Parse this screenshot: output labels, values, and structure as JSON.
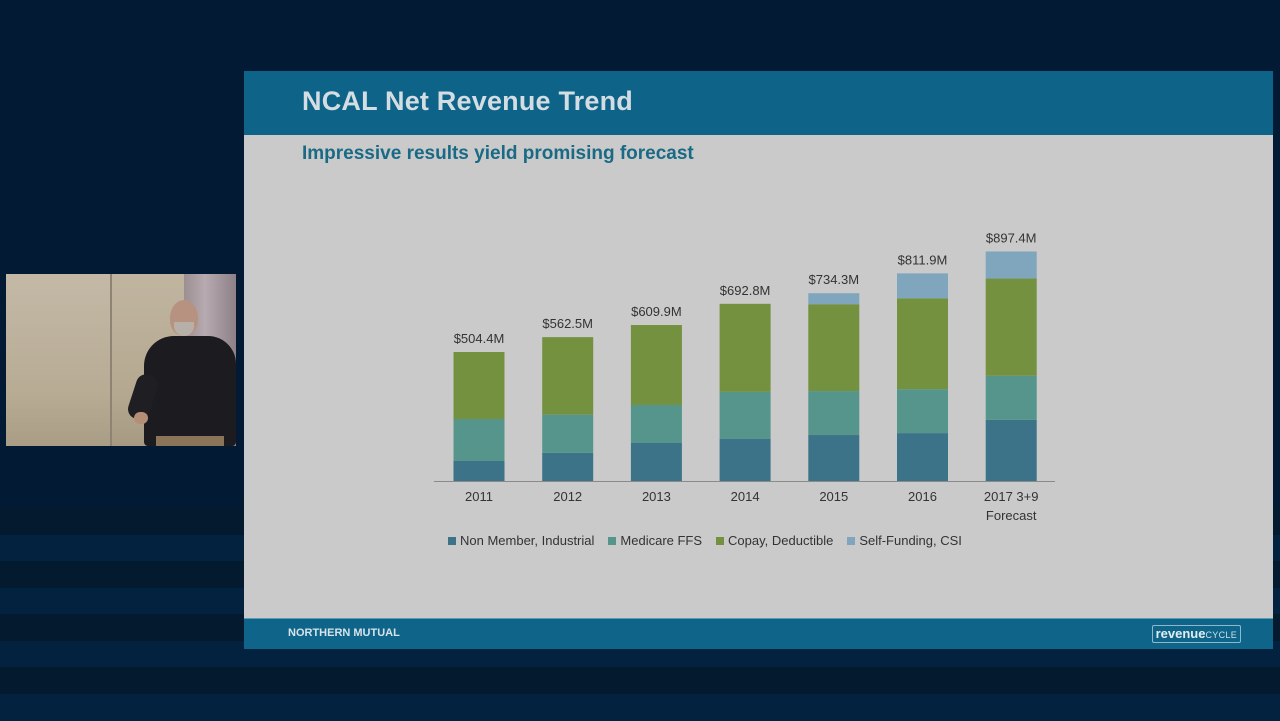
{
  "background": {
    "stripe_colors": [
      "#041a2e",
      "#03223f",
      "#041a2e",
      "#03223f",
      "#041a2e",
      "#03223f",
      "#041a2e",
      "#03223f"
    ]
  },
  "webcam": {
    "description": "presenter video feed"
  },
  "slide": {
    "title": "NCAL Net Revenue Trend",
    "subtitle": "Impressive results yield promising forecast",
    "footer_org": "NORTHERN MUTUAL",
    "footer_logo_bold": "revenue",
    "footer_logo_light": "CYCLE",
    "colors": {
      "header": "#0e6389",
      "background": "#cacaca",
      "subtitle": "#1a6a86"
    }
  },
  "chart_data": {
    "type": "bar",
    "stacked": true,
    "title": "",
    "xlabel": "",
    "ylabel": "",
    "ylim": [
      0,
      950
    ],
    "grid": false,
    "legend_position": "bottom",
    "categories": [
      "2011",
      "2012",
      "2013",
      "2014",
      "2015",
      "2016",
      "2017 3+9 Forecast"
    ],
    "category_lines": [
      [
        "2011"
      ],
      [
        "2012"
      ],
      [
        "2013"
      ],
      [
        "2014"
      ],
      [
        "2015"
      ],
      [
        "2016"
      ],
      [
        "2017 3+9",
        "Forecast"
      ]
    ],
    "totals": [
      504.4,
      562.5,
      609.9,
      692.8,
      734.3,
      811.9,
      897.4
    ],
    "total_labels": [
      "$504.4M",
      "$562.5M",
      "$609.9M",
      "$692.8M",
      "$734.3M",
      "$811.9M",
      "$897.4M"
    ],
    "units": "$M",
    "series": [
      {
        "name": "Non Member, Industrial",
        "color": "#3c7389",
        "values": [
          78.2,
          110.1,
          148.6,
          164.4,
          179.7,
          187.3,
          239.0
        ]
      },
      {
        "name": "Medicare FFS",
        "color": "#55958b",
        "values": [
          164.2,
          149.4,
          148.6,
          184.0,
          171.9,
          171.7,
          172.4
        ]
      },
      {
        "name": "Copay, Deductible",
        "color": "#74913f",
        "values": [
          262.0,
          303.0,
          312.7,
          344.4,
          339.7,
          355.3,
          380.2
        ]
      },
      {
        "name": "Self-Funding, CSI",
        "color": "#7fa6bd",
        "values": [
          0,
          0,
          0,
          0,
          43.0,
          97.6,
          105.8
        ]
      }
    ]
  }
}
